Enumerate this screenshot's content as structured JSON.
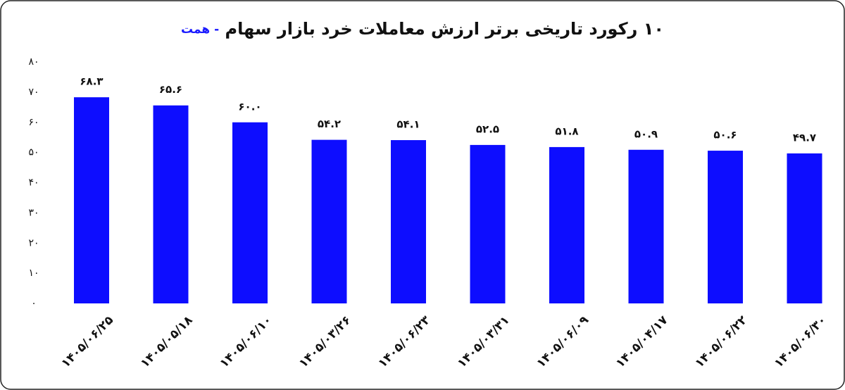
{
  "chart_data": {
    "type": "bar",
    "title": "۱۰ رکورد تاریخی برتر ارزش معاملات خرد بازار سهام",
    "unit": "- همت",
    "categories": [
      "۱۴۰۵/۰۶/۲۵",
      "۱۴۰۵/۰۵/۱۸",
      "۱۴۰۵/۰۶/۱۰",
      "۱۴۰۵/۰۳/۲۶",
      "۱۴۰۵/۰۶/۲۳",
      "۱۴۰۵/۰۳/۳۱",
      "۱۴۰۵/۰۶/۰۹",
      "۱۴۰۵/۰۴/۱۷",
      "۱۴۰۵/۰۶/۲۲",
      "۱۴۰۵/۰۶/۳۰"
    ],
    "values": [
      68.3,
      65.6,
      60.0,
      54.2,
      54.1,
      52.5,
      51.8,
      50.9,
      50.6,
      49.7
    ],
    "value_labels": [
      "۶۸.۳",
      "۶۵.۶",
      "۶۰.۰",
      "۵۴.۲",
      "۵۴.۱",
      "۵۲.۵",
      "۵۱.۸",
      "۵۰.۹",
      "۵۰.۶",
      "۴۹.۷"
    ],
    "color": "#0d0dff",
    "unit_color": "#1a1aff",
    "ylim": [
      0,
      80
    ],
    "yticks": [
      {
        "value": 0,
        "label": "۰"
      },
      {
        "value": 10,
        "label": "۱۰"
      },
      {
        "value": 20,
        "label": "۲۰"
      },
      {
        "value": 30,
        "label": "۳۰"
      },
      {
        "value": 40,
        "label": "۴۰"
      },
      {
        "value": 50,
        "label": "۵۰"
      },
      {
        "value": 60,
        "label": "۶۰"
      },
      {
        "value": 70,
        "label": "۷۰"
      },
      {
        "value": 80,
        "label": "۸۰"
      }
    ],
    "grid": false
  }
}
